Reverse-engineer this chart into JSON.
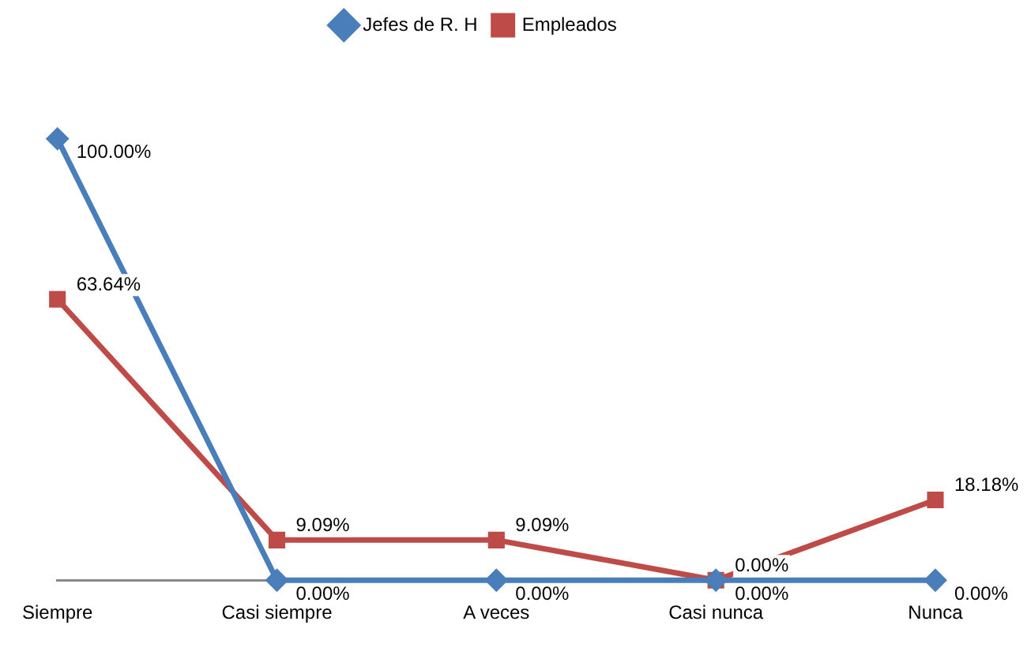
{
  "chart_data": {
    "type": "line",
    "categories": [
      "Siempre",
      "Casi siempre",
      "A veces",
      "Casi nunca",
      "Nunca"
    ],
    "series": [
      {
        "name": "Jefes de R. H",
        "color": "#4a7ebb",
        "marker": "diamond",
        "values": [
          100,
          0,
          0,
          0,
          0
        ],
        "value_labels": [
          "100.00%",
          "0.00%",
          "0.00%",
          "0.00%",
          "0.00%"
        ]
      },
      {
        "name": "Empleados",
        "color": "#be4b48",
        "marker": "square",
        "values": [
          63.64,
          9.09,
          9.09,
          0,
          18.18
        ],
        "value_labels": [
          "63.64%",
          "9.09%",
          "9.09%",
          "0.00%",
          "18.18%"
        ]
      }
    ],
    "tick_labels": "x",
    "grid": false,
    "legend": "top",
    "line_style": "solid"
  }
}
